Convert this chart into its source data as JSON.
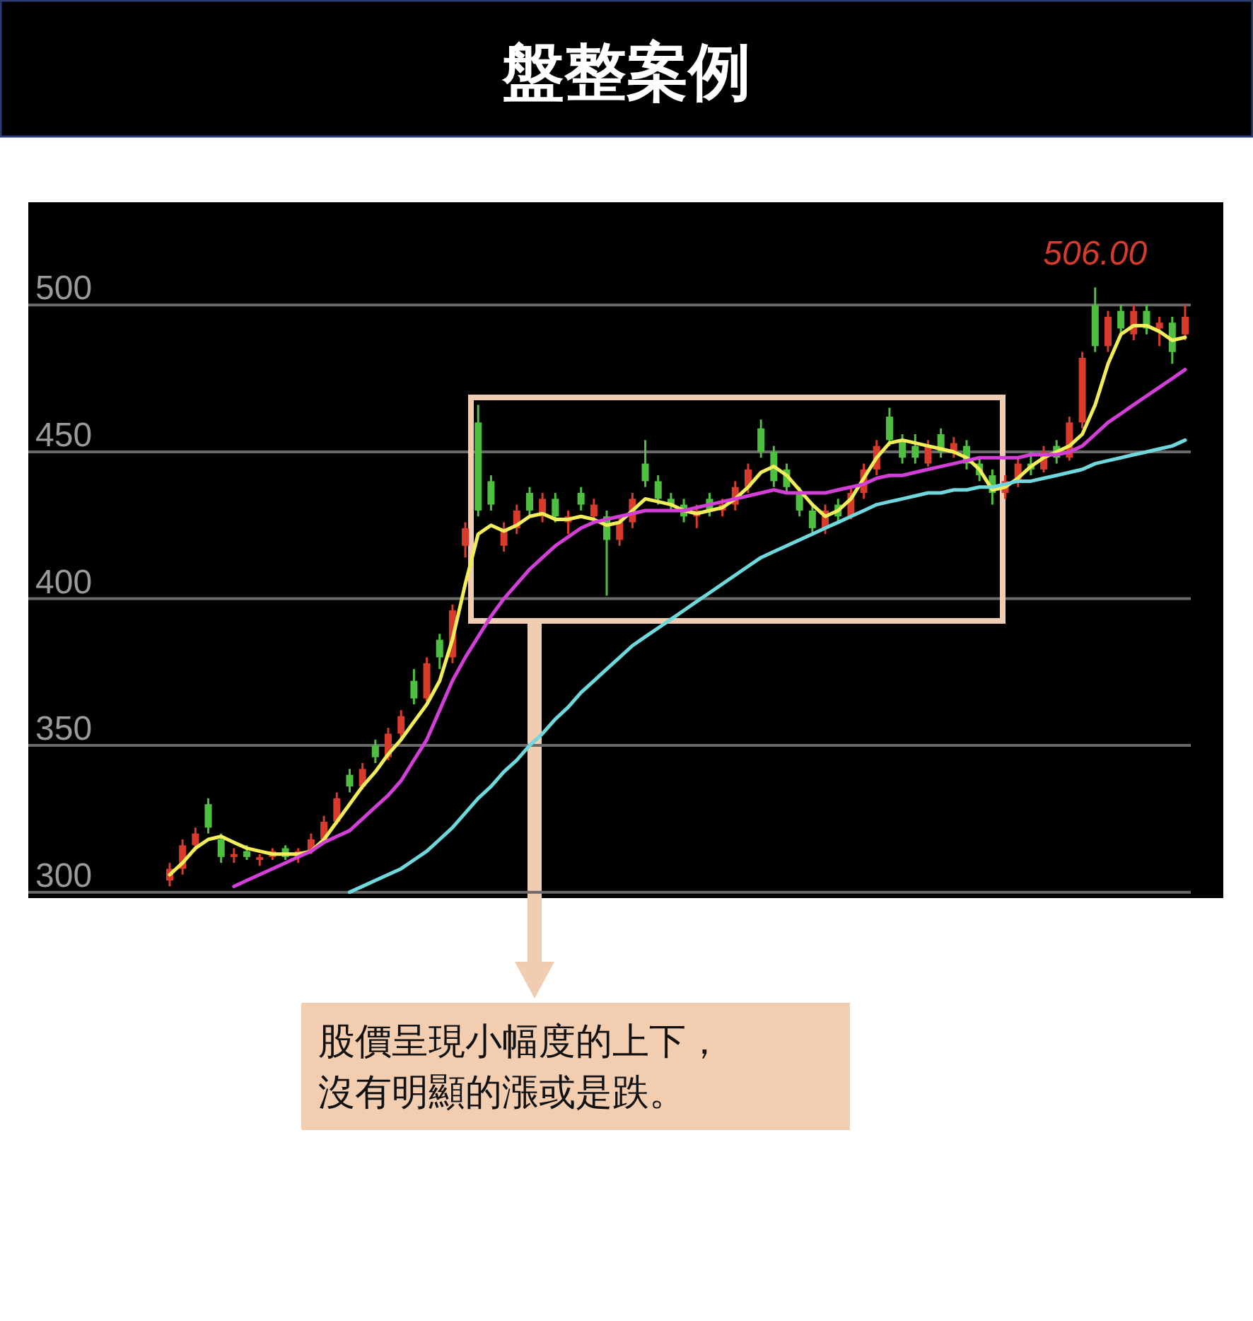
{
  "chart_data": {
    "type": "candlestick",
    "title": "盤整案例",
    "categories": [
      null,
      null,
      null,
      null,
      null,
      null,
      null,
      null,
      null,
      null,
      null,
      null,
      null,
      null,
      null,
      null,
      null,
      null,
      null,
      null,
      null,
      null,
      null,
      null,
      null,
      null,
      null,
      null,
      null,
      null,
      null,
      null,
      null,
      null,
      null,
      null,
      null,
      null,
      null,
      null,
      null,
      null,
      null,
      null,
      null,
      null,
      null,
      null,
      null,
      null,
      null,
      null,
      null,
      null,
      null,
      null,
      null,
      null,
      null,
      null,
      null,
      null,
      null,
      null,
      null,
      null,
      null,
      null,
      null,
      null,
      null,
      null,
      null,
      null,
      null,
      null,
      null,
      null,
      null,
      null
    ],
    "ohlc": [
      [
        304,
        310,
        302,
        308
      ],
      [
        308,
        318,
        306,
        316
      ],
      [
        316,
        322,
        314,
        320
      ],
      [
        330,
        332,
        320,
        322
      ],
      [
        318,
        320,
        310,
        312
      ],
      [
        312,
        315,
        310,
        313
      ],
      [
        314,
        316,
        311,
        312
      ],
      [
        311,
        313,
        309,
        312
      ],
      [
        312,
        315,
        311,
        314
      ],
      [
        315,
        316,
        311,
        312
      ],
      [
        312,
        315,
        310,
        314
      ],
      [
        314,
        320,
        313,
        318
      ],
      [
        318,
        326,
        317,
        324
      ],
      [
        324,
        334,
        323,
        332
      ],
      [
        340,
        342,
        334,
        336
      ],
      [
        336,
        344,
        335,
        342
      ],
      [
        350,
        352,
        344,
        346
      ],
      [
        346,
        356,
        345,
        354
      ],
      [
        354,
        362,
        352,
        360
      ],
      [
        372,
        376,
        364,
        366
      ],
      [
        366,
        380,
        365,
        378
      ],
      [
        386,
        388,
        376,
        380
      ],
      [
        380,
        398,
        378,
        396
      ],
      [
        418,
        426,
        414,
        424
      ],
      [
        460,
        466,
        428,
        430
      ],
      [
        440,
        442,
        430,
        432
      ],
      [
        418,
        426,
        416,
        424
      ],
      [
        424,
        432,
        422,
        430
      ],
      [
        436,
        438,
        428,
        430
      ],
      [
        428,
        436,
        426,
        434
      ],
      [
        434,
        436,
        426,
        428
      ],
      [
        426,
        430,
        422,
        428
      ],
      [
        436,
        438,
        430,
        432
      ],
      [
        428,
        434,
        426,
        432
      ],
      [
        428,
        430,
        401,
        420
      ],
      [
        420,
        428,
        418,
        426
      ],
      [
        426,
        436,
        424,
        434
      ],
      [
        446,
        454,
        438,
        440
      ],
      [
        440,
        442,
        432,
        434
      ],
      [
        434,
        436,
        430,
        432
      ],
      [
        432,
        434,
        426,
        428
      ],
      [
        428,
        432,
        424,
        430
      ],
      [
        434,
        436,
        428,
        430
      ],
      [
        430,
        434,
        428,
        432
      ],
      [
        432,
        440,
        430,
        438
      ],
      [
        438,
        446,
        436,
        444
      ],
      [
        458,
        461,
        448,
        450
      ],
      [
        450,
        452,
        438,
        440
      ],
      [
        444,
        446,
        436,
        438
      ],
      [
        436,
        438,
        428,
        430
      ],
      [
        430,
        432,
        422,
        424
      ],
      [
        424,
        432,
        422,
        430
      ],
      [
        432,
        434,
        426,
        428
      ],
      [
        428,
        438,
        427,
        436
      ],
      [
        436,
        446,
        434,
        444
      ],
      [
        444,
        454,
        442,
        452
      ],
      [
        462,
        465,
        452,
        454
      ],
      [
        454,
        456,
        446,
        448
      ],
      [
        452,
        456,
        446,
        448
      ],
      [
        446,
        454,
        445,
        452
      ],
      [
        456,
        458,
        448,
        450
      ],
      [
        450,
        455,
        448,
        453
      ],
      [
        452,
        454,
        444,
        446
      ],
      [
        446,
        448,
        440,
        442
      ],
      [
        442,
        444,
        432,
        436
      ],
      [
        436,
        442,
        434,
        440
      ],
      [
        440,
        448,
        438,
        446
      ],
      [
        446,
        450,
        442,
        444
      ],
      [
        444,
        452,
        443,
        450
      ],
      [
        452,
        454,
        446,
        448
      ],
      [
        448,
        462,
        447,
        460
      ],
      [
        460,
        484,
        458,
        482
      ],
      [
        500,
        506,
        484,
        486
      ],
      [
        486,
        498,
        484,
        496
      ],
      [
        498,
        500,
        490,
        492
      ],
      [
        490,
        500,
        488,
        498
      ],
      [
        498,
        500,
        490,
        492
      ],
      [
        492,
        496,
        486,
        494
      ],
      [
        494,
        496,
        480,
        484
      ],
      [
        490,
        500,
        488,
        496
      ]
    ],
    "colors": [
      "#d63b2b",
      "#d63b2b",
      "#d63b2b",
      "#4fbf3f",
      "#4fbf3f",
      "#d63b2b",
      "#4fbf3f",
      "#d63b2b",
      "#d63b2b",
      "#4fbf3f",
      "#d63b2b",
      "#d63b2b",
      "#d63b2b",
      "#d63b2b",
      "#4fbf3f",
      "#d63b2b",
      "#4fbf3f",
      "#d63b2b",
      "#d63b2b",
      "#4fbf3f",
      "#d63b2b",
      "#4fbf3f",
      "#d63b2b",
      "#d63b2b",
      "#4fbf3f",
      "#4fbf3f",
      "#d63b2b",
      "#d63b2b",
      "#4fbf3f",
      "#d63b2b",
      "#4fbf3f",
      "#d63b2b",
      "#4fbf3f",
      "#d63b2b",
      "#4fbf3f",
      "#d63b2b",
      "#d63b2b",
      "#4fbf3f",
      "#4fbf3f",
      "#4fbf3f",
      "#4fbf3f",
      "#d63b2b",
      "#4fbf3f",
      "#d63b2b",
      "#d63b2b",
      "#d63b2b",
      "#4fbf3f",
      "#4fbf3f",
      "#4fbf3f",
      "#4fbf3f",
      "#4fbf3f",
      "#d63b2b",
      "#4fbf3f",
      "#d63b2b",
      "#d63b2b",
      "#d63b2b",
      "#4fbf3f",
      "#4fbf3f",
      "#4fbf3f",
      "#d63b2b",
      "#4fbf3f",
      "#d63b2b",
      "#4fbf3f",
      "#4fbf3f",
      "#4fbf3f",
      "#d63b2b",
      "#d63b2b",
      "#4fbf3f",
      "#d63b2b",
      "#4fbf3f",
      "#d63b2b",
      "#d63b2b",
      "#4fbf3f",
      "#d63b2b",
      "#4fbf3f",
      "#d63b2b",
      "#4fbf3f",
      "#d63b2b",
      "#4fbf3f",
      "#d63b2b"
    ],
    "series": [
      {
        "type": "line",
        "color": "#f2ee5a",
        "values": [
          306,
          310,
          315,
          318,
          319,
          317,
          315,
          314,
          313,
          313,
          313,
          314,
          318,
          324,
          330,
          336,
          341,
          347,
          352,
          358,
          364,
          372,
          386,
          405,
          422,
          425,
          423,
          425,
          428,
          429,
          427,
          427,
          428,
          427,
          425,
          426,
          430,
          434,
          433,
          432,
          430,
          429,
          430,
          431,
          434,
          438,
          443,
          445,
          442,
          437,
          432,
          428,
          430,
          434,
          441,
          448,
          453,
          454,
          453,
          452,
          451,
          450,
          448,
          444,
          437,
          438,
          441,
          445,
          448,
          450,
          452,
          456,
          466,
          480,
          490,
          493,
          493,
          491,
          488,
          489
        ]
      },
      {
        "type": "line",
        "color": "#d23fd6",
        "values": [
          null,
          null,
          null,
          null,
          null,
          302,
          304,
          306,
          308,
          310,
          312,
          314,
          317,
          319,
          321,
          325,
          329,
          333,
          338,
          345,
          352,
          362,
          372,
          380,
          387,
          394,
          400,
          405,
          410,
          414,
          418,
          421,
          424,
          426,
          427,
          428,
          429,
          430,
          430,
          430,
          430,
          431,
          432,
          433,
          434,
          435,
          436,
          437,
          436,
          436,
          436,
          436,
          437,
          438,
          439,
          441,
          442,
          442,
          443,
          444,
          445,
          446,
          447,
          448,
          448,
          448,
          448,
          449,
          449,
          449,
          450,
          452,
          456,
          460,
          463,
          466,
          469,
          472,
          475,
          478
        ]
      },
      {
        "type": "line",
        "color": "#6fd8dc",
        "values": [
          null,
          null,
          null,
          null,
          null,
          null,
          null,
          null,
          null,
          null,
          null,
          null,
          null,
          null,
          300,
          302,
          304,
          306,
          308,
          311,
          314,
          318,
          322,
          327,
          332,
          336,
          341,
          345,
          350,
          354,
          359,
          363,
          368,
          372,
          376,
          380,
          384,
          387,
          390,
          393,
          396,
          399,
          402,
          405,
          408,
          411,
          414,
          416,
          418,
          420,
          422,
          424,
          426,
          428,
          430,
          432,
          433,
          434,
          435,
          436,
          436,
          437,
          437,
          438,
          438,
          439,
          440,
          440,
          441,
          442,
          443,
          444,
          446,
          447,
          448,
          449,
          450,
          451,
          452,
          454
        ]
      }
    ],
    "ylim": [
      298,
      535
    ],
    "yticks": [
      300,
      350,
      400,
      450,
      500
    ],
    "grid": "y",
    "tick_labels": "y",
    "annotations": [
      {
        "text": "506.00",
        "y": 506
      },
      "股價呈現小幅度的上下，",
      "沒有明顯的漲或是跌。"
    ]
  }
}
